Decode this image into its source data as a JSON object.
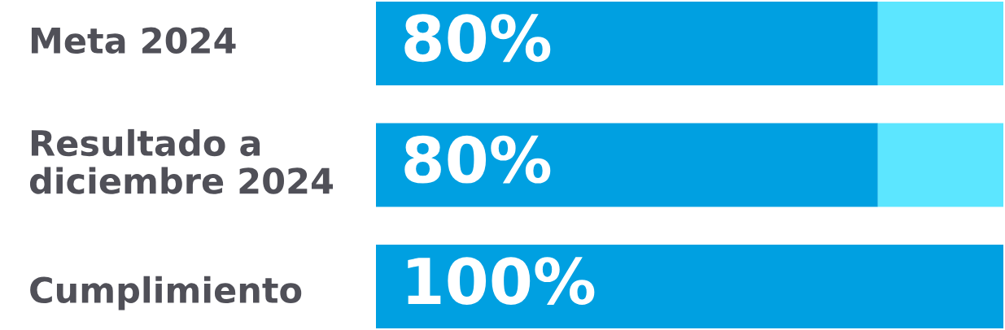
{
  "chart_data": {
    "type": "bar",
    "orientation": "horizontal",
    "stacked": true,
    "categories": [
      "Meta 2024",
      "Resultado a\ndiciembre 2024",
      "Cumplimiento"
    ],
    "series": [
      {
        "color": "#00a0e1",
        "values": [
          80,
          80,
          100
        ],
        "value_labels": [
          "80%",
          "80%",
          "100%"
        ]
      },
      {
        "color": "#5ce6ff",
        "values": [
          20,
          20,
          0
        ]
      }
    ]
  }
}
